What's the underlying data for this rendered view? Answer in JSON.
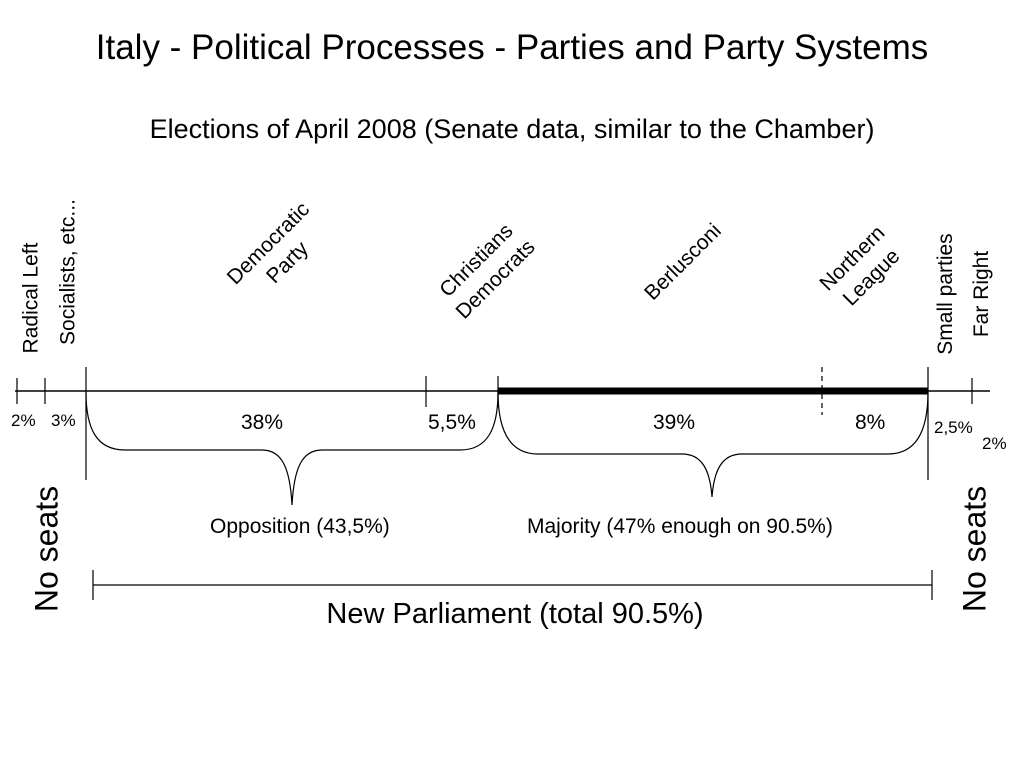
{
  "title": "Italy - Political Processes - Parties and Party Systems",
  "subtitle": "Elections of April 2008 (Senate data, similar to the Chamber)",
  "parties": {
    "radical_left": "Radical Left",
    "socialists": "Socialists, etc...",
    "democratic_party": [
      "Democratic",
      "Party"
    ],
    "christian_democrats": [
      "Christians",
      "Democrats"
    ],
    "berlusconi": "Berlusconi",
    "northern_league": [
      "Northern",
      "League"
    ],
    "small_parties": [
      "Small parties",
      "Far Right"
    ]
  },
  "shares": {
    "radical_left": "2%",
    "socialists": "3%",
    "democratic_party": "38%",
    "christian_democrats": "5,5%",
    "berlusconi": "39%",
    "northern_league": "8%",
    "small_parties": "2,5%",
    "far_right": "2%"
  },
  "blocs": {
    "opposition": "Opposition (43,5%)",
    "majority": "Majority (47% enough on 90.5%)"
  },
  "no_seats_left": "No seats",
  "no_seats_right": "No seats",
  "parliament": "New Parliament (total 90.5%)"
}
